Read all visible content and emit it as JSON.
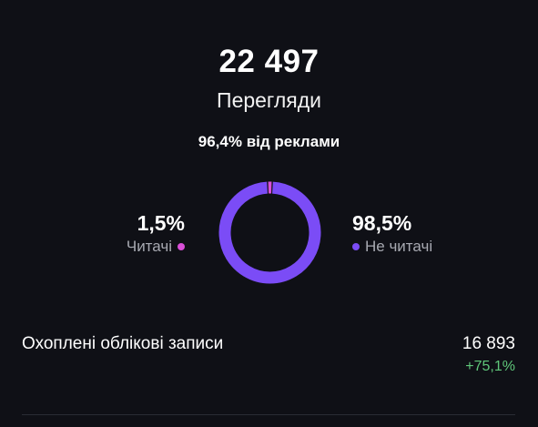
{
  "summary": {
    "total": "22 497",
    "label": "Перегляди",
    "ads_share": "96,4% від реклами"
  },
  "breakdown": {
    "followers": {
      "percent_text": "1,5%",
      "label": "Читачі",
      "color": "#d94fd8",
      "value": 1.5
    },
    "non_followers": {
      "percent_text": "98,5%",
      "label": "Не читачі",
      "color": "#7b4cf6",
      "value": 98.5
    }
  },
  "reach": {
    "label": "Охоплені облікові записи",
    "value": "16 893",
    "change": "+75,1%",
    "change_color": "#5fc77a"
  }
}
